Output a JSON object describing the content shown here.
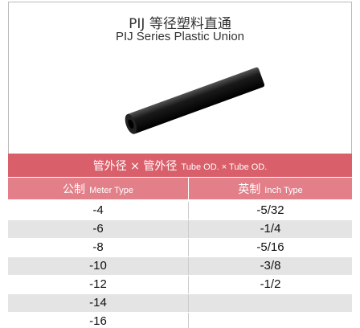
{
  "header": {
    "title": "PIJ 等径塑料直通",
    "subtitle": "PIJ Series Plastic Union"
  },
  "table": {
    "heading": {
      "cn": "管外径 × 管外径",
      "en": "Tube OD. × Tube OD."
    },
    "columns": [
      {
        "cn": "公制",
        "en": "Meter Type"
      },
      {
        "cn": "英制",
        "en": "Inch Type"
      }
    ],
    "metric": [
      "-4",
      "-6",
      "-8",
      "-10",
      "-12",
      "-14",
      "-16"
    ],
    "inch": [
      "-5/32",
      "-1/4",
      "-5/16",
      "-3/8",
      "-1/2"
    ]
  }
}
